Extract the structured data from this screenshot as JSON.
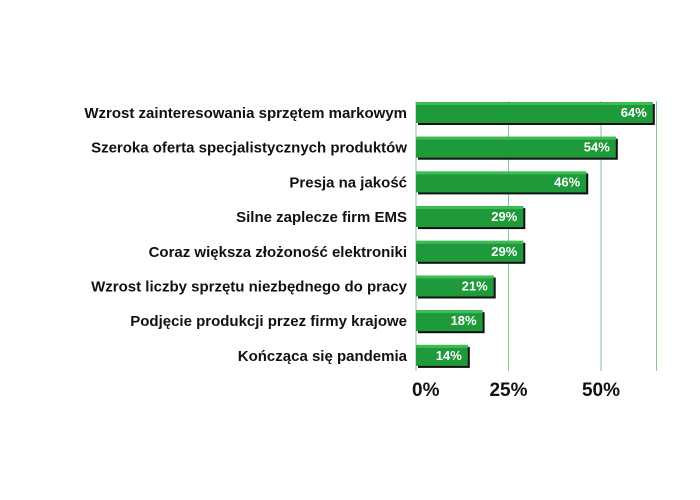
{
  "chart_data": {
    "type": "bar",
    "orientation": "horizontal",
    "categories": [
      "Wzrost zainteresowania sprzętem markowym",
      "Szeroka oferta specjalistycznych produktów",
      "Presja na jakość",
      "Silne zaplecze firm EMS",
      "Coraz większa złożoność elektroniki",
      "Wzrost liczby sprzętu niezbędnego do pracy",
      "Podjęcie produkcji przez firmy krajowe",
      "Kończąca się pandemia"
    ],
    "values": [
      64,
      54,
      46,
      29,
      29,
      21,
      18,
      14
    ],
    "value_labels": [
      "64%",
      "54%",
      "46%",
      "29%",
      "29%",
      "21%",
      "18%",
      "14%"
    ],
    "xlim": [
      0,
      65
    ],
    "xticks": [
      0,
      25,
      50
    ],
    "xtick_labels": [
      "0%",
      "25%",
      "50%"
    ],
    "grid": true,
    "colors": {
      "bar": "#1f9a3a",
      "bar_highlight": "#3dbb55",
      "bar_shadow": "#111111",
      "grid": "#7fc98f"
    }
  }
}
